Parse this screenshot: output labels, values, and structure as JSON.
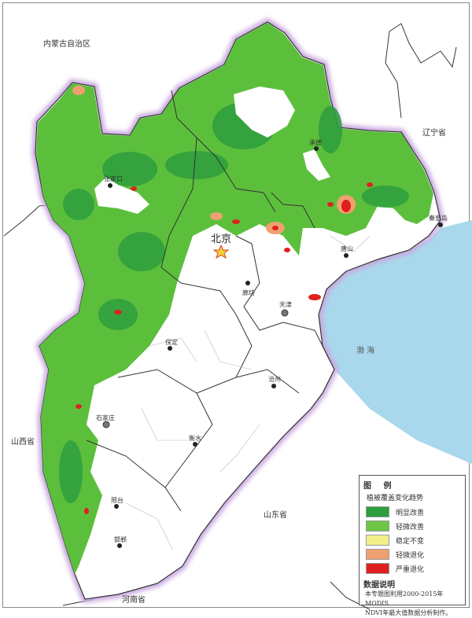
{
  "regions": {
    "inner_mongolia": "内蒙古自治区",
    "liaoning": "辽宁省",
    "shanxi": "山西省",
    "shandong": "山东省",
    "henan": "河南省",
    "bohai": "渤 海"
  },
  "cities": {
    "beijing": "北京",
    "tianjin": "天津",
    "zhangjiakou": "张家口",
    "chengde": "承德",
    "qinhuangdao": "秦皇岛",
    "tangshan": "唐山",
    "langfang": "廊坊",
    "baoding": "保定",
    "cangzhou": "沧州",
    "shijiazhuang": "石家庄",
    "hengshui": "衡水",
    "xingtai": "邢台",
    "handan": "邯郸"
  },
  "legend": {
    "title": "图 例",
    "subtitle": "植被覆盖变化趋势",
    "items": [
      {
        "label": "明显改善",
        "color": "#2e9e3e"
      },
      {
        "label": "轻微改善",
        "color": "#6cc644"
      },
      {
        "label": "稳定不变",
        "color": "#f2f08a"
      },
      {
        "label": "轻微退化",
        "color": "#f0a070"
      },
      {
        "label": "严重退化",
        "color": "#e02020"
      }
    ],
    "note_title": "数据说明",
    "note_line1": "本专题图利用2000-2015年MODIS",
    "note_line2": "NDVI年最大值数据分析制作。"
  },
  "colors": {
    "sea": "#a9d8ec",
    "border_halo": "#c9a8e0"
  }
}
